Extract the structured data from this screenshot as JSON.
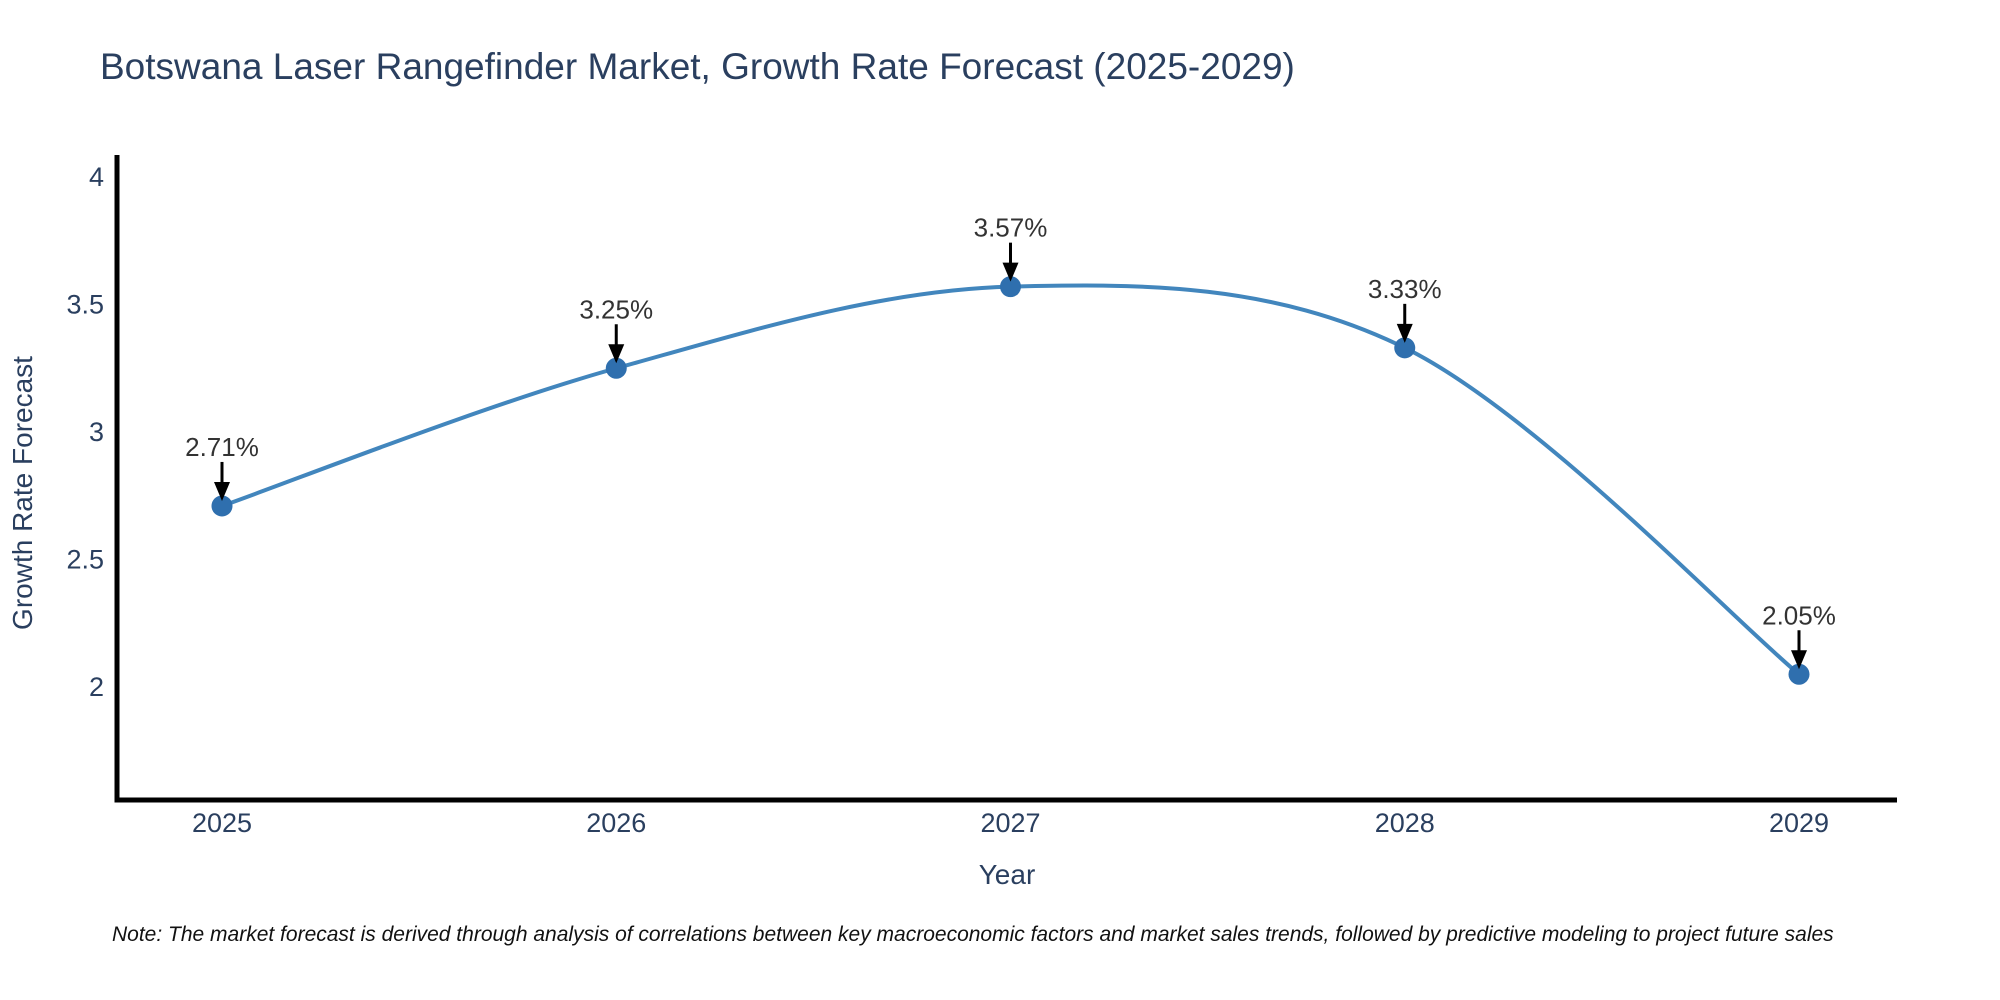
{
  "title": "Botswana Laser Rangefinder Market, Growth Rate Forecast (2025-2029)",
  "note": "Note: The market forecast is derived through analysis of correlations between key macroeconomic factors and market sales trends, followed by predictive modeling to project future sales",
  "chart_data": {
    "type": "line",
    "line_shape": "spline",
    "x": [
      2025,
      2026,
      2027,
      2028,
      2029
    ],
    "series": [
      {
        "name": "Growth Rate Forecast",
        "values": [
          2.71,
          3.25,
          3.57,
          3.33,
          2.05
        ],
        "point_labels": [
          "2.71%",
          "3.25%",
          "3.57%",
          "3.33%",
          "2.05%"
        ]
      }
    ],
    "title": "Botswana Laser Rangefinder Market, Growth Rate Forecast (2025-2029)",
    "xlabel": "Year",
    "ylabel": "Growth Rate Forecast",
    "yticks": [
      2,
      2.5,
      3,
      3.5,
      4
    ],
    "xticks": [
      "2025",
      "2026",
      "2027",
      "2028",
      "2029"
    ],
    "ylim": [
      1.55,
      4.07
    ],
    "grid": false,
    "legend": "none",
    "colors": {
      "line": "#4286bd",
      "marker": "#2f6fae",
      "axis": "#000000",
      "text": "#2a3f5f",
      "annotation": "#333333",
      "arrow": "#000000"
    }
  }
}
